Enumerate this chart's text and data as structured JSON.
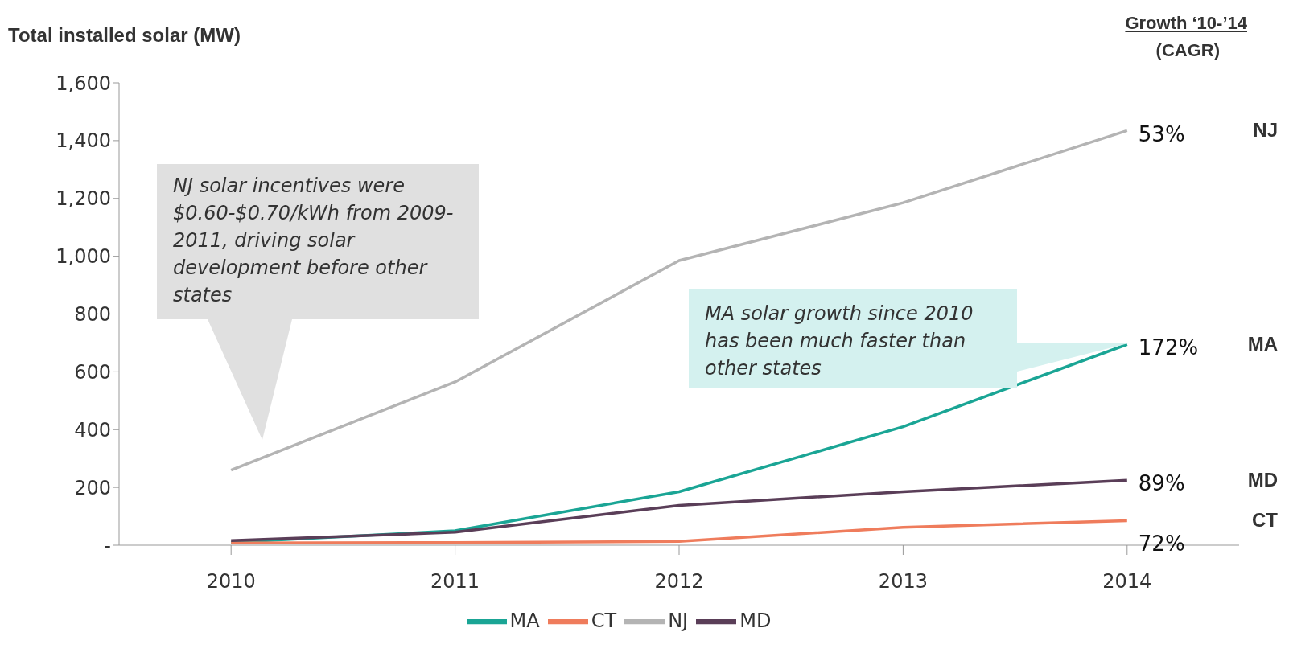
{
  "chart_data": {
    "type": "line",
    "ylabel": "Total installed solar (MW)",
    "categories": [
      "2010",
      "2011",
      "2012",
      "2013",
      "2014"
    ],
    "series": [
      {
        "name": "MA",
        "color": "#1aa595",
        "values": [
          10,
          50,
          185,
          410,
          695
        ]
      },
      {
        "name": "CT",
        "color": "#ef7c5c",
        "values": [
          8,
          9,
          13,
          62,
          85
        ]
      },
      {
        "name": "NJ",
        "color": "#b4b4b4",
        "values": [
          260,
          565,
          985,
          1185,
          1435
        ]
      },
      {
        "name": "MD",
        "color": "#5a3e58",
        "values": [
          16,
          45,
          138,
          185,
          225
        ]
      }
    ],
    "ylim": [
      0,
      1600
    ],
    "yticks": [
      {
        "value": 0,
        "label": "-"
      },
      200,
      400,
      600,
      800,
      {
        "value": 1000,
        "label": "1,000"
      },
      {
        "value": 1200,
        "label": "1,200"
      },
      {
        "value": 1400,
        "label": "1,400"
      },
      {
        "value": 1600,
        "label": "1,600"
      }
    ],
    "grid": false,
    "legend": "bottom",
    "marker": "none",
    "line_style": "solid",
    "annotations": [
      "Growth ‘10-’14",
      "(CAGR)",
      "NJ solar incentives were $0.60-$0.70/kWh from 2009-2011, driving solar development before other states",
      "MA solar growth since 2010 has been much faster than other states",
      {
        "text": "53%",
        "x": "2014",
        "y": 1435
      },
      {
        "text": "172%",
        "x": "2014",
        "y": 695
      },
      {
        "text": "89%",
        "x": "2014",
        "y": 225
      },
      {
        "text": "72%",
        "x": "2014",
        "y": 85
      }
    ]
  }
}
